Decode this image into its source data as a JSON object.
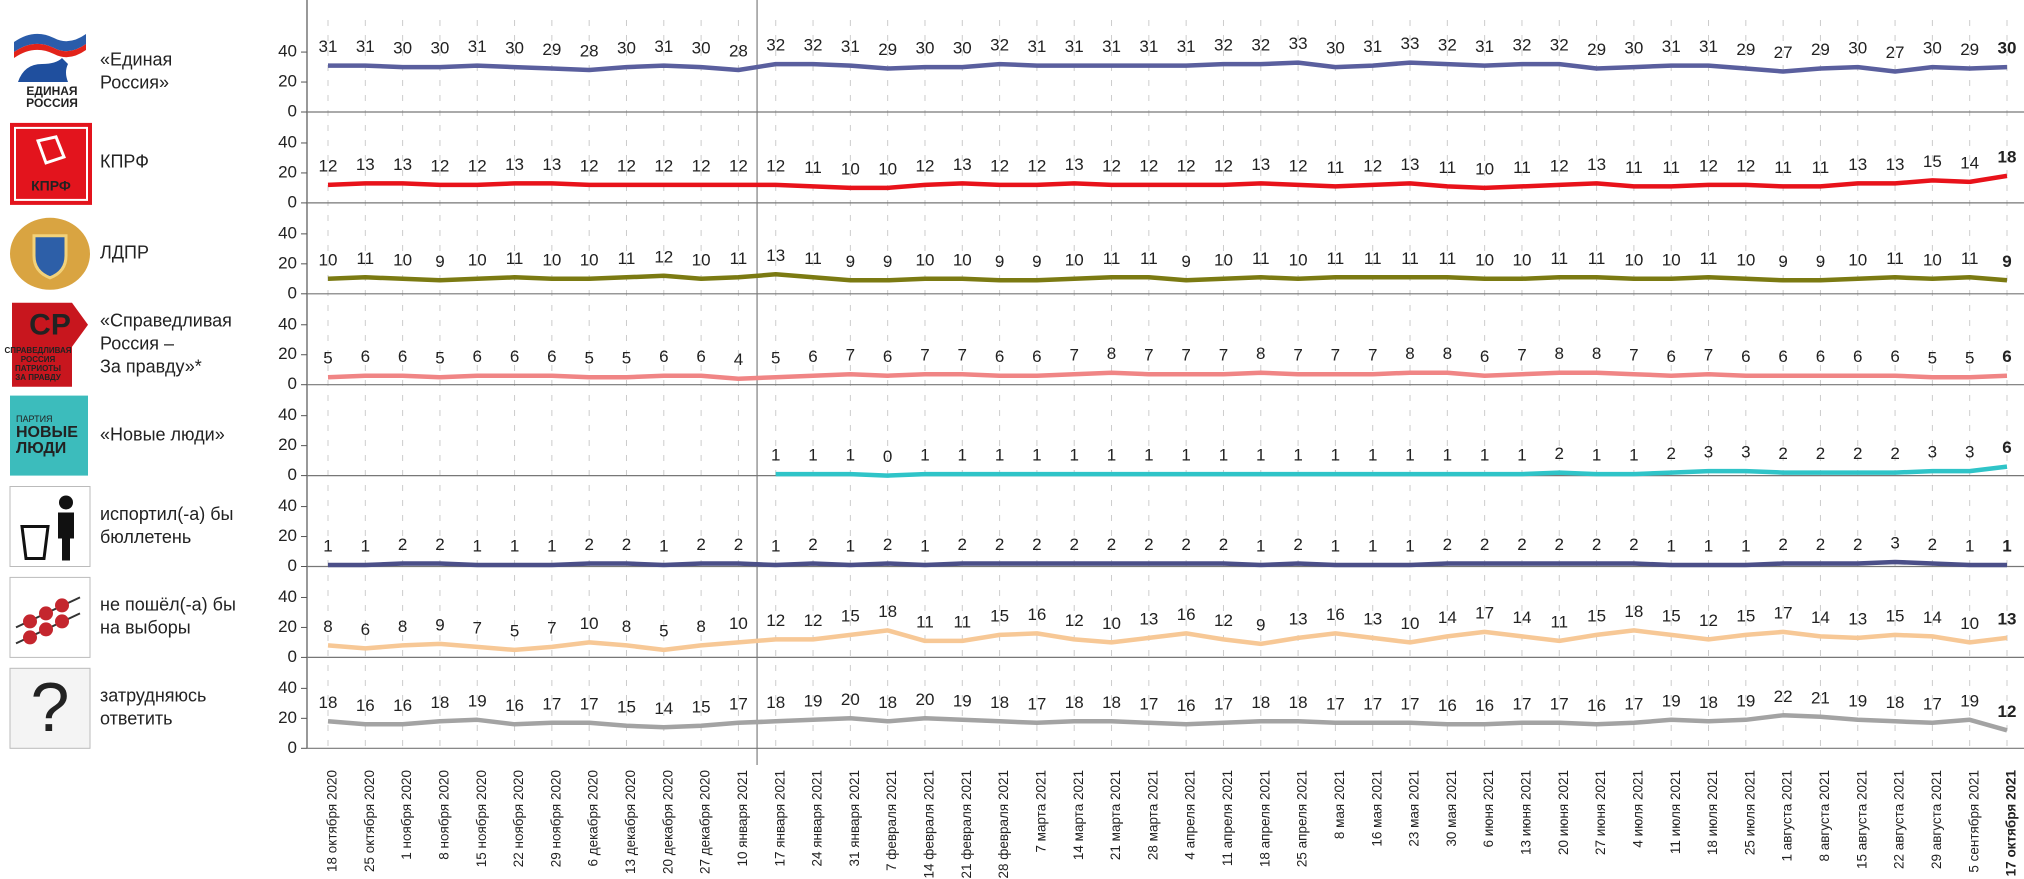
{
  "chart_data": {
    "type": "line",
    "categories": [
      "18 октября 2020",
      "25 октября 2020",
      "1 ноября 2020",
      "8 ноября 2020",
      "15 ноября 2020",
      "22 ноября 2020",
      "29 ноября 2020",
      "6 декабря 2020",
      "13 декабря 2020",
      "20 декабря 2020",
      "27 декабря 2020",
      "10 января 2021",
      "17 января 2021",
      "24 января 2021",
      "31 января 2021",
      "7 февраля 2021",
      "14 февраля 2021",
      "21 февраля 2021",
      "28 февраля 2021",
      "7 марта 2021",
      "14 марта 2021",
      "21 марта 2021",
      "28 марта 2021",
      "4 апреля 2021",
      "11 апреля 2021",
      "18 апреля 2021",
      "25 апреля 2021",
      "8 мая 2021",
      "16 мая 2021",
      "23 мая 2021",
      "30 мая 2021",
      "6 июня 2021",
      "13 июня 2021",
      "20 июня 2021",
      "27 июня 2021",
      "4 июля 2021",
      "11 июля 2021",
      "18 июля 2021",
      "25 июля 2021",
      "1 августа 2021",
      "8 августа 2021",
      "15 августа 2021",
      "22 августа 2021",
      "29 августа 2021",
      "5 сентября 2021",
      "17 октября 2021"
    ],
    "ylim": [
      0,
      58
    ],
    "yticks": [
      0,
      20,
      40
    ],
    "series": [
      {
        "name": [
          "«Единая",
          "Россия»"
        ],
        "logo_text": [
          "ЕДИНАЯ",
          "РОССИЯ"
        ],
        "color": "#5a5f9e",
        "values": [
          31,
          31,
          30,
          30,
          31,
          30,
          29,
          28,
          30,
          31,
          30,
          28,
          32,
          32,
          31,
          29,
          30,
          30,
          32,
          31,
          31,
          31,
          31,
          31,
          32,
          32,
          33,
          30,
          31,
          33,
          32,
          31,
          32,
          32,
          29,
          30,
          31,
          31,
          29,
          27,
          29,
          30,
          27,
          30,
          29,
          30
        ]
      },
      {
        "name": [
          "КПРФ"
        ],
        "logo_text": [
          "КПРФ"
        ],
        "color": "#e8121a",
        "values": [
          12,
          13,
          13,
          12,
          12,
          13,
          13,
          12,
          12,
          12,
          12,
          12,
          12,
          11,
          10,
          10,
          12,
          13,
          12,
          12,
          13,
          12,
          12,
          12,
          12,
          13,
          12,
          11,
          12,
          13,
          11,
          10,
          11,
          12,
          13,
          11,
          11,
          12,
          12,
          11,
          11,
          13,
          13,
          15,
          14,
          18
        ]
      },
      {
        "name": [
          "ЛДПР"
        ],
        "color": "#7b7a12",
        "values": [
          10,
          11,
          10,
          9,
          10,
          11,
          10,
          10,
          11,
          12,
          10,
          11,
          13,
          11,
          9,
          9,
          10,
          10,
          9,
          9,
          10,
          11,
          11,
          9,
          10,
          11,
          10,
          11,
          11,
          11,
          11,
          10,
          10,
          11,
          11,
          10,
          10,
          11,
          10,
          9,
          9,
          10,
          11,
          10,
          11,
          9
        ]
      },
      {
        "name": [
          "«Справедливая",
          "Россия –",
          "За правду»*"
        ],
        "logo_text": [
          "СР",
          "СПРАВЕДЛИВАЯ",
          "РОССИЯ",
          "ПАТРИОТЫ",
          "ЗА ПРАВДУ"
        ],
        "color": "#f08585",
        "values": [
          5,
          6,
          6,
          5,
          6,
          6,
          6,
          5,
          5,
          6,
          6,
          4,
          5,
          6,
          7,
          6,
          7,
          7,
          6,
          6,
          7,
          8,
          7,
          7,
          7,
          8,
          7,
          7,
          7,
          8,
          8,
          6,
          7,
          8,
          8,
          7,
          6,
          7,
          6,
          6,
          6,
          6,
          6,
          5,
          5,
          6
        ]
      },
      {
        "name": [
          "«Новые люди»"
        ],
        "logo_text": [
          "ПАРТИЯ",
          "НОВЫЕ",
          "ЛЮДИ"
        ],
        "color": "#2fc4c8",
        "values": [
          null,
          null,
          null,
          null,
          null,
          null,
          null,
          null,
          null,
          null,
          null,
          null,
          1,
          1,
          1,
          0,
          1,
          1,
          1,
          1,
          1,
          1,
          1,
          1,
          1,
          1,
          1,
          1,
          1,
          1,
          1,
          1,
          1,
          2,
          1,
          1,
          2,
          3,
          3,
          2,
          2,
          2,
          2,
          3,
          3,
          6
        ]
      },
      {
        "name": [
          "испортил(-а) бы",
          "бюллетень"
        ],
        "color": "#4b4f88",
        "values": [
          1,
          1,
          2,
          2,
          1,
          1,
          1,
          2,
          2,
          1,
          2,
          2,
          1,
          2,
          1,
          2,
          1,
          2,
          2,
          2,
          2,
          2,
          2,
          2,
          2,
          1,
          2,
          1,
          1,
          1,
          2,
          2,
          2,
          2,
          2,
          2,
          1,
          1,
          1,
          2,
          2,
          2,
          3,
          2,
          1,
          1
        ]
      },
      {
        "name": [
          "не пошёл(-а) бы",
          "на выборы"
        ],
        "color": "#f7c896",
        "values": [
          8,
          6,
          8,
          9,
          7,
          5,
          7,
          10,
          8,
          5,
          8,
          10,
          12,
          12,
          15,
          18,
          11,
          11,
          15,
          16,
          12,
          10,
          13,
          16,
          12,
          9,
          13,
          16,
          13,
          10,
          14,
          17,
          14,
          11,
          15,
          18,
          15,
          12,
          15,
          17,
          14,
          13,
          15,
          14,
          10,
          13
        ]
      },
      {
        "name": [
          "затрудняюсь",
          "ответить"
        ],
        "logo_text": [
          "?"
        ],
        "color": "#a3a3a3",
        "values": [
          18,
          16,
          16,
          18,
          19,
          16,
          17,
          17,
          15,
          14,
          15,
          17,
          18,
          19,
          20,
          18,
          20,
          19,
          18,
          17,
          18,
          18,
          17,
          16,
          17,
          18,
          18,
          17,
          17,
          17,
          16,
          16,
          17,
          17,
          16,
          17,
          19,
          18,
          19,
          22,
          21,
          19,
          18,
          17,
          19,
          12
        ]
      }
    ]
  }
}
